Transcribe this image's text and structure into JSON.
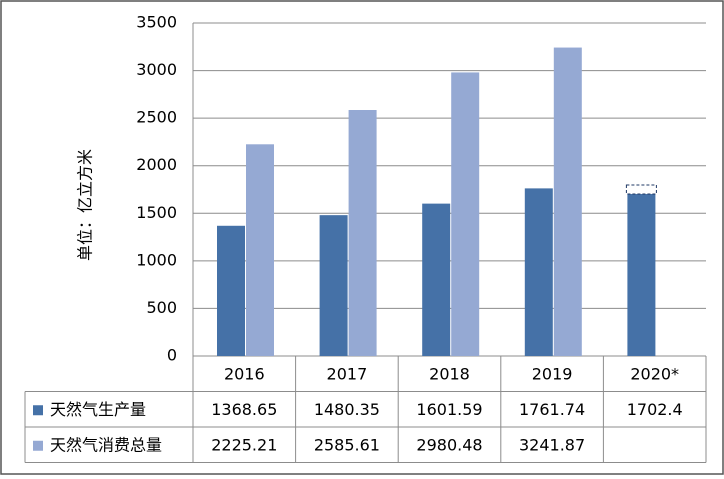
{
  "chart_data": {
    "type": "bar",
    "y_label": "单位：亿立方米",
    "categories": [
      "2016",
      "2017",
      "2018",
      "2019",
      "2020*"
    ],
    "series": [
      {
        "name": "天然气生产量",
        "color": "#4571a7",
        "values": [
          1368.65,
          1480.35,
          1601.59,
          1761.74,
          1702.4
        ]
      },
      {
        "name": "天然气消费总量",
        "color": "#95a9d3",
        "values": [
          2225.21,
          2585.61,
          2980.48,
          3241.87,
          null
        ]
      }
    ],
    "ylim": [
      0,
      3500
    ],
    "yticks": [
      0,
      500,
      1000,
      1500,
      2000,
      2500,
      3000,
      3500
    ],
    "grid": true
  }
}
